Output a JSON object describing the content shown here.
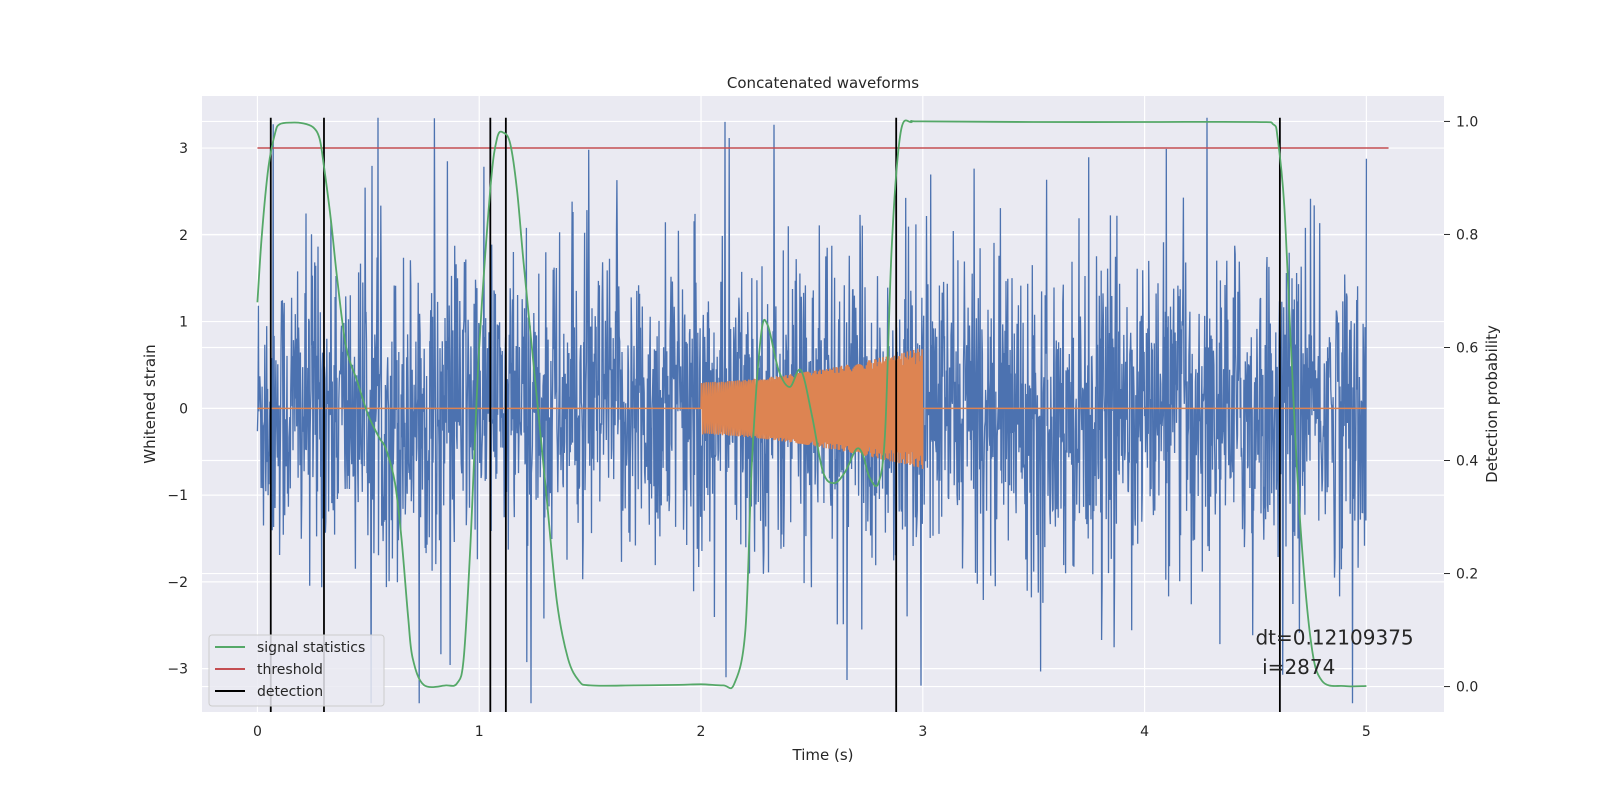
{
  "chart_data": {
    "type": "line",
    "title": "Concatenated waveforms",
    "xlabel": "Time (s)",
    "ylabel": "Whitened strain",
    "y2label": "Detection probability",
    "xlim": [
      -0.25,
      5.35
    ],
    "ylim": [
      -3.5,
      3.6
    ],
    "y2lim": [
      -0.045,
      1.045
    ],
    "x_ticks": [
      0,
      1,
      2,
      3,
      4,
      5
    ],
    "y_ticks": [
      -3,
      -2,
      -1,
      0,
      1,
      2,
      3
    ],
    "y2_ticks": [
      0.0,
      0.2,
      0.4,
      0.6,
      0.8,
      1.0
    ],
    "grid": true,
    "legend_position": "lower-left",
    "colors": {
      "strain": "#4c72b0",
      "injection": "#dd8452",
      "signal_statistics": "#55a868",
      "threshold": "#c44e52",
      "detection": "#000000",
      "background": "#eaeaf2"
    },
    "series": [
      {
        "key": "strain",
        "axis": "left",
        "x_range": [
          0,
          5
        ],
        "amplitude_envelope": [
          -3.4,
          3.35
        ]
      },
      {
        "key": "injection",
        "axis": "left",
        "x_range": [
          2.0,
          3.0
        ],
        "amplitude": [
          0.3,
          0.7
        ]
      },
      {
        "name": "signal statistics",
        "key": "signal_statistics",
        "axis": "right",
        "x": [
          0.0,
          0.02,
          0.05,
          0.08,
          0.1,
          0.15,
          0.2,
          0.25,
          0.28,
          0.3,
          0.33,
          0.36,
          0.4,
          0.45,
          0.5,
          0.55,
          0.58,
          0.62,
          0.65,
          0.68,
          0.7,
          0.75,
          0.85,
          0.9,
          0.93,
          0.96,
          1.0,
          1.05,
          1.08,
          1.11,
          1.14,
          1.17,
          1.2,
          1.25,
          1.3,
          1.35,
          1.4,
          1.45,
          1.5,
          1.7,
          1.9,
          2.0,
          2.1,
          2.15,
          2.2,
          2.23,
          2.27,
          2.3,
          2.35,
          2.4,
          2.45,
          2.5,
          2.55,
          2.6,
          2.65,
          2.7,
          2.73,
          2.76,
          2.8,
          2.83,
          2.86,
          2.9,
          2.95,
          3.0,
          3.5,
          4.0,
          4.5,
          4.58,
          4.6,
          4.63,
          4.66,
          4.7,
          4.75,
          4.8,
          4.9,
          5.0
        ],
        "y": [
          0.68,
          0.8,
          0.92,
          0.98,
          0.995,
          0.998,
          0.997,
          0.99,
          0.97,
          0.92,
          0.83,
          0.72,
          0.6,
          0.54,
          0.48,
          0.44,
          0.42,
          0.36,
          0.26,
          0.12,
          0.05,
          0.003,
          0.002,
          0.006,
          0.05,
          0.25,
          0.6,
          0.88,
          0.97,
          0.98,
          0.96,
          0.88,
          0.75,
          0.55,
          0.35,
          0.15,
          0.05,
          0.01,
          0.002,
          0.002,
          0.003,
          0.004,
          0.002,
          0.005,
          0.1,
          0.4,
          0.62,
          0.64,
          0.56,
          0.53,
          0.56,
          0.48,
          0.38,
          0.36,
          0.38,
          0.42,
          0.41,
          0.37,
          0.36,
          0.45,
          0.78,
          0.98,
          0.999,
          1.0,
          0.999,
          0.999,
          0.999,
          0.995,
          0.97,
          0.85,
          0.6,
          0.3,
          0.08,
          0.01,
          0.001,
          0.001
        ]
      },
      {
        "name": "threshold",
        "key": "threshold",
        "axis": "left",
        "x": [
          0,
          5.1
        ],
        "y": [
          3.0,
          3.0
        ]
      },
      {
        "name": "detection",
        "key": "detection",
        "axis": "left",
        "x_positions": [
          0.06,
          0.3,
          1.05,
          1.12,
          2.88,
          4.61
        ],
        "y_range": [
          -3.5,
          3.35
        ]
      }
    ],
    "annotations": [
      {
        "text": "dt=0.12109375",
        "x": 4.5,
        "y": -2.72
      },
      {
        "text": "i=2874",
        "x": 4.53,
        "y": -3.06
      }
    ]
  }
}
